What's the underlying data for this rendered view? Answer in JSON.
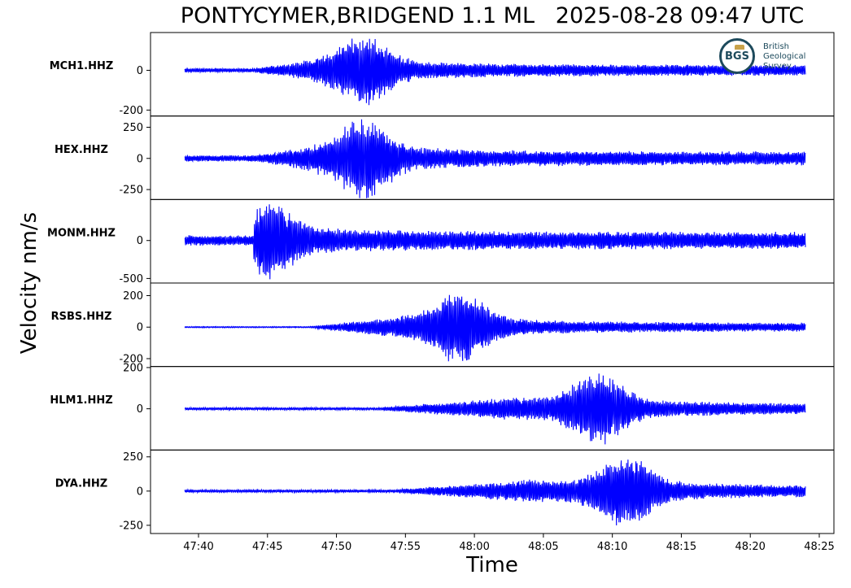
{
  "chart_data": {
    "type": "line",
    "title": "PONTYCYMER,BRIDGEND 1.1 ML   2025-08-28 09:47 UTC",
    "xlabel": "Time",
    "ylabel": "Velocity nm/s",
    "x_ticks": [
      "47:40",
      "47:45",
      "47:50",
      "47:55",
      "48:00",
      "48:05",
      "48:10",
      "48:15",
      "48:20",
      "48:25"
    ],
    "x_start": "47:39",
    "x_end": "48:24",
    "grid": false,
    "line_color": "#0000ff",
    "panels": [
      {
        "station": "MCH1.HHZ",
        "yticks": [
          0,
          -200
        ],
        "ylim": [
          -230,
          190
        ],
        "p_arrival": "47:44",
        "peak_time": "47:52",
        "peak_amplitude": 175,
        "noise": 10
      },
      {
        "station": "HEX.HHZ",
        "yticks": [
          250,
          0,
          -250
        ],
        "ylim": [
          -330,
          340
        ],
        "p_arrival": "47:44",
        "peak_time": "47:52",
        "peak_amplitude": 310,
        "noise": 25
      },
      {
        "station": "MONM.HHZ",
        "yticks": [
          0,
          -500
        ],
        "ylim": [
          -560,
          540
        ],
        "p_arrival": "47:44",
        "peak_time": "47:45",
        "peak_amplitude": 470,
        "noise": 70
      },
      {
        "station": "RSBS.HHZ",
        "yticks": [
          200,
          0,
          -200
        ],
        "ylim": [
          -250,
          280
        ],
        "p_arrival": "47:48",
        "peak_time": "47:59",
        "peak_amplitude": 240,
        "noise": 4
      },
      {
        "station": "HLM1.HHZ",
        "yticks": [
          200,
          0
        ],
        "ylim": [
          -200,
          205
        ],
        "p_arrival": "47:53",
        "peak_time": "48:09",
        "peak_amplitude": 180,
        "noise": 6
      },
      {
        "station": "DYA.HHZ",
        "yticks": [
          250,
          0,
          -250
        ],
        "ylim": [
          -310,
          300
        ],
        "p_arrival": "47:54",
        "peak_time": "48:11",
        "peak_amplitude": 270,
        "noise": 10
      }
    ]
  },
  "logo": {
    "abbr": "BGS",
    "line1": "British",
    "line2": "Geological",
    "line3": "Survey",
    "color": "#1d4a5c",
    "accent": "#c9a24a"
  }
}
